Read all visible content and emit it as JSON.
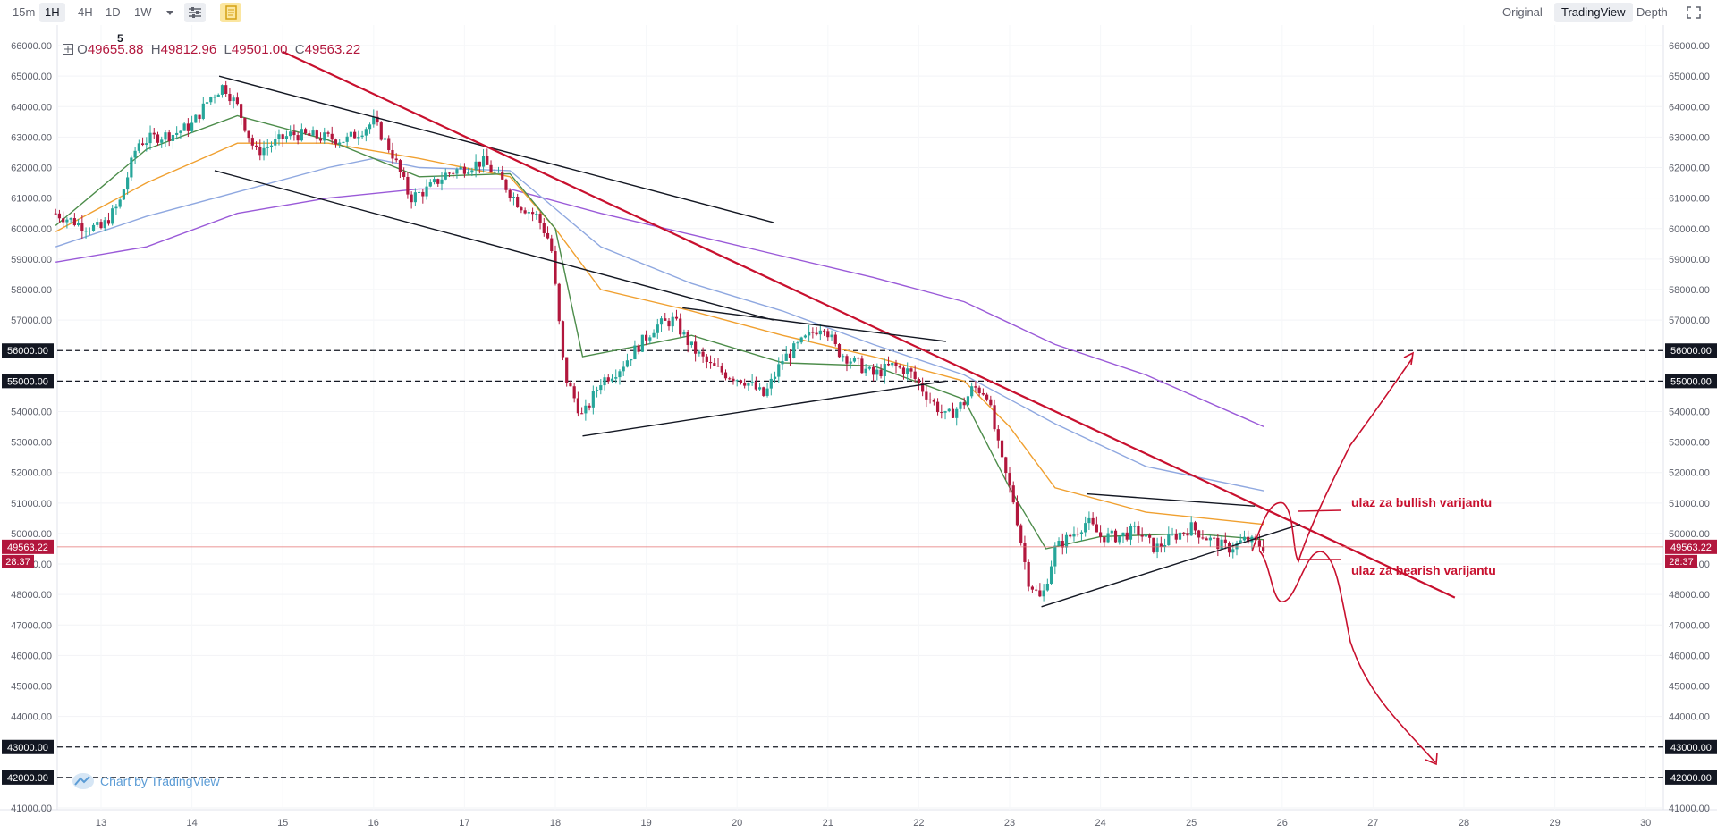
{
  "toolbar": {
    "timeframes": [
      "15m",
      "1H",
      "4H",
      "1D",
      "1W"
    ],
    "active_timeframe": "1H",
    "views": [
      "Original",
      "TradingView",
      "Depth"
    ],
    "active_view": "TradingView",
    "icons": [
      "chevron-down-icon",
      "indicators-icon",
      "notes-icon",
      "fullscreen-icon"
    ]
  },
  "legend": {
    "marker": "5",
    "open_label": "O",
    "open": "49655.88",
    "high_label": "H",
    "high": "49812.96",
    "low_label": "L",
    "low": "49501.00",
    "close_label": "C",
    "close": "49563.22"
  },
  "watermark": "Chart by TradingView",
  "price_badge": {
    "price": "49563.22",
    "countdown": "28:37"
  },
  "annotations": {
    "bullish": "ulaz za bullish varijantu",
    "bearish": "ulaz za bearish varijantu"
  },
  "colors": {
    "up": "#26a69a",
    "down": "#b2173d",
    "trend": "#c8102e",
    "ema_orange": "#f0a030",
    "ema_green": "#4c8c4a",
    "ma_blue": "#8fa8e0",
    "ma_purple": "#9a5ad8",
    "price_line": "#e57373"
  },
  "chart_data": {
    "type": "candlestick",
    "symbol_interval": "1H",
    "y_range": [
      41000,
      66500
    ],
    "y_ticks": [
      "66000.00",
      "65000.00",
      "64000.00",
      "63000.00",
      "62000.00",
      "61000.00",
      "60000.00",
      "59000.00",
      "58000.00",
      "57000.00",
      "56000.00",
      "55000.00",
      "54000.00",
      "53000.00",
      "52000.00",
      "51000.00",
      "50000.00",
      "49000.00",
      "48000.00",
      "47000.00",
      "46000.00",
      "45000.00",
      "44000.00",
      "43000.00",
      "42000.00",
      "41000.00"
    ],
    "x_ticks": [
      "13",
      "14",
      "15",
      "16",
      "17",
      "18",
      "19",
      "20",
      "21",
      "22",
      "23",
      "24",
      "25",
      "26",
      "27",
      "28",
      "29",
      "30"
    ],
    "horizontal_levels": [
      "56000.00",
      "55000.00",
      "43000.00",
      "42000.00"
    ],
    "last_price": 49563.22,
    "price_path": [
      [
        12.5,
        60500
      ],
      [
        12.8,
        60100
      ],
      [
        13.0,
        60000
      ],
      [
        13.2,
        60800
      ],
      [
        13.4,
        62800
      ],
      [
        13.6,
        63000
      ],
      [
        13.8,
        63100
      ],
      [
        14.0,
        63400
      ],
      [
        14.2,
        64300
      ],
      [
        14.35,
        64700
      ],
      [
        14.5,
        64000
      ],
      [
        14.7,
        62500
      ],
      [
        14.9,
        62800
      ],
      [
        15.1,
        63100
      ],
      [
        15.4,
        63000
      ],
      [
        15.7,
        62900
      ],
      [
        15.9,
        63300
      ],
      [
        16.0,
        63500
      ],
      [
        16.2,
        62500
      ],
      [
        16.4,
        61000
      ],
      [
        16.6,
        61300
      ],
      [
        16.8,
        61800
      ],
      [
        17.0,
        62000
      ],
      [
        17.2,
        62200
      ],
      [
        17.4,
        61600
      ],
      [
        17.6,
        60800
      ],
      [
        17.8,
        60400
      ],
      [
        17.95,
        59500
      ],
      [
        18.1,
        55200
      ],
      [
        18.3,
        53800
      ],
      [
        18.5,
        55000
      ],
      [
        18.7,
        55400
      ],
      [
        18.9,
        56100
      ],
      [
        19.1,
        56800
      ],
      [
        19.3,
        57000
      ],
      [
        19.5,
        56100
      ],
      [
        19.7,
        55500
      ],
      [
        19.9,
        55200
      ],
      [
        20.1,
        55000
      ],
      [
        20.3,
        54500
      ],
      [
        20.5,
        55700
      ],
      [
        20.8,
        56500
      ],
      [
        20.95,
        56900
      ],
      [
        21.1,
        56000
      ],
      [
        21.3,
        55600
      ],
      [
        21.5,
        55200
      ],
      [
        21.7,
        55500
      ],
      [
        21.9,
        55300
      ],
      [
        22.1,
        54500
      ],
      [
        22.3,
        53800
      ],
      [
        22.5,
        54300
      ],
      [
        22.6,
        54800
      ],
      [
        22.75,
        54600
      ],
      [
        22.9,
        52500
      ],
      [
        23.05,
        51000
      ],
      [
        23.2,
        48500
      ],
      [
        23.35,
        47800
      ],
      [
        23.5,
        49500
      ],
      [
        23.7,
        50000
      ],
      [
        23.85,
        50400
      ],
      [
        24.0,
        49900
      ],
      [
        24.2,
        49900
      ],
      [
        24.4,
        50100
      ],
      [
        24.6,
        49500
      ],
      [
        24.8,
        49900
      ],
      [
        25.0,
        50200
      ],
      [
        25.2,
        49800
      ],
      [
        25.4,
        49500
      ],
      [
        25.6,
        49800
      ],
      [
        25.8,
        49563
      ]
    ],
    "indicators": [
      {
        "id": "ma-purple",
        "color": "#9a5ad8",
        "points": [
          [
            12.5,
            58900
          ],
          [
            13.5,
            59400
          ],
          [
            14.5,
            60500
          ],
          [
            15.5,
            61000
          ],
          [
            16.5,
            61300
          ],
          [
            17.5,
            61300
          ],
          [
            18.5,
            60500
          ],
          [
            19.5,
            59800
          ],
          [
            20.5,
            59100
          ],
          [
            21.5,
            58400
          ],
          [
            22.5,
            57600
          ],
          [
            23.5,
            56200
          ],
          [
            24.5,
            55200
          ],
          [
            25.8,
            53500
          ]
        ]
      },
      {
        "id": "ma-blue",
        "color": "#8fa8e0",
        "points": [
          [
            12.5,
            59400
          ],
          [
            13.5,
            60400
          ],
          [
            14.5,
            61200
          ],
          [
            15.5,
            62000
          ],
          [
            16.0,
            62300
          ],
          [
            16.5,
            62000
          ],
          [
            17.5,
            61900
          ],
          [
            18.5,
            59400
          ],
          [
            19.5,
            58200
          ],
          [
            20.5,
            57300
          ],
          [
            21.5,
            56200
          ],
          [
            22.5,
            55200
          ],
          [
            23.5,
            53600
          ],
          [
            24.5,
            52200
          ],
          [
            25.8,
            51400
          ]
        ]
      },
      {
        "id": "ema-orange",
        "color": "#f0a030",
        "points": [
          [
            12.5,
            59900
          ],
          [
            13.5,
            61500
          ],
          [
            14.5,
            62800
          ],
          [
            15.5,
            62800
          ],
          [
            16.5,
            62300
          ],
          [
            17.5,
            61700
          ],
          [
            18.0,
            60000
          ],
          [
            18.5,
            58000
          ],
          [
            19.5,
            57300
          ],
          [
            20.5,
            56500
          ],
          [
            21.5,
            55800
          ],
          [
            22.5,
            55000
          ],
          [
            23.0,
            53500
          ],
          [
            23.5,
            51500
          ],
          [
            24.5,
            50700
          ],
          [
            25.8,
            50300
          ]
        ]
      },
      {
        "id": "ema-green",
        "color": "#4c8c4a",
        "points": [
          [
            12.5,
            60100
          ],
          [
            13.5,
            62600
          ],
          [
            14.5,
            63700
          ],
          [
            15.5,
            62900
          ],
          [
            16.5,
            61700
          ],
          [
            17.5,
            61800
          ],
          [
            18.0,
            60000
          ],
          [
            18.3,
            55800
          ],
          [
            19.0,
            56200
          ],
          [
            19.5,
            56500
          ],
          [
            20.5,
            55600
          ],
          [
            21.5,
            55500
          ],
          [
            22.5,
            54400
          ],
          [
            23.0,
            51500
          ],
          [
            23.4,
            49500
          ],
          [
            24.0,
            49900
          ],
          [
            25.0,
            50000
          ],
          [
            25.8,
            49800
          ]
        ]
      }
    ],
    "trend_lines": [
      {
        "id": "channel-upper",
        "color": "#131722",
        "from": [
          14.3,
          65000
        ],
        "to": [
          20.4,
          60200
        ]
      },
      {
        "id": "channel-lower",
        "color": "#131722",
        "from": [
          14.25,
          61900
        ],
        "to": [
          20.4,
          57000
        ]
      },
      {
        "id": "red-downtrend",
        "color": "#c8102e",
        "from": [
          15.0,
          65800
        ],
        "to": [
          27.9,
          47900
        ]
      },
      {
        "id": "triangle1-upper",
        "color": "#131722",
        "from": [
          19.4,
          57400
        ],
        "to": [
          22.3,
          56300
        ]
      },
      {
        "id": "triangle1-lower",
        "color": "#131722",
        "from": [
          18.3,
          53200
        ],
        "to": [
          22.3,
          55000
        ]
      },
      {
        "id": "triangle2-upper",
        "color": "#131722",
        "from": [
          23.85,
          51300
        ],
        "to": [
          25.7,
          50900
        ]
      },
      {
        "id": "triangle2-lower",
        "color": "#131722",
        "from": [
          23.35,
          47600
        ],
        "to": [
          26.2,
          50300
        ]
      }
    ]
  }
}
